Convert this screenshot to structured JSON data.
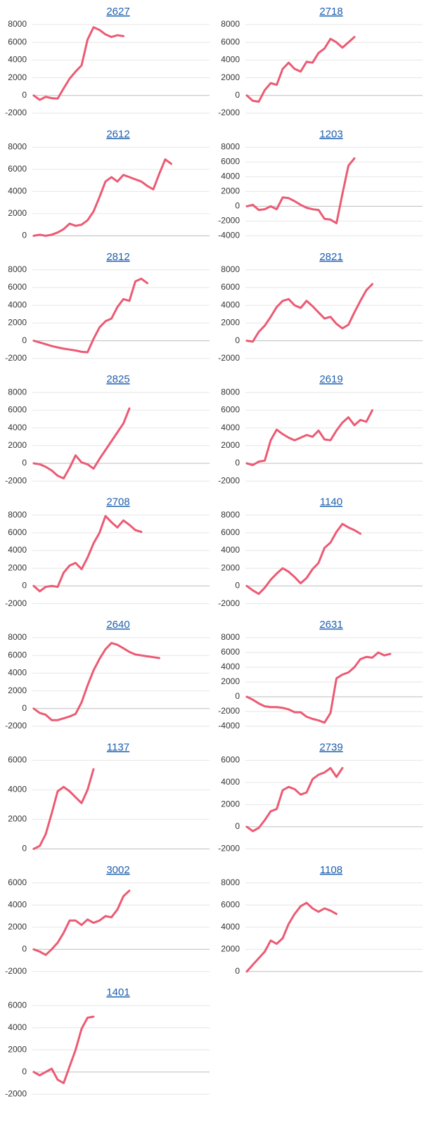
{
  "chart_data": [
    {
      "type": "line",
      "title": "2627",
      "color": "#ec5a73",
      "ylim": [
        -2000,
        8000
      ],
      "yticks": [
        -2000,
        0,
        2000,
        4000,
        6000,
        8000
      ],
      "grid": true,
      "values": [
        0,
        -500,
        -150,
        -300,
        -350,
        800,
        1900,
        2700,
        3400,
        6300,
        7700,
        7400,
        6900,
        6600,
        6800,
        6700
      ]
    },
    {
      "type": "line",
      "title": "2718",
      "color": "#ec5a73",
      "ylim": [
        -2000,
        8000
      ],
      "yticks": [
        -2000,
        0,
        2000,
        4000,
        6000,
        8000
      ],
      "grid": true,
      "values": [
        0,
        -600,
        -700,
        600,
        1400,
        1200,
        3000,
        3700,
        3000,
        2700,
        3800,
        3700,
        4800,
        5300,
        6400,
        6000,
        5400,
        6000,
        6600
      ]
    },
    {
      "type": "line",
      "title": "2612",
      "color": "#ec5a73",
      "ylim": [
        0,
        8000
      ],
      "yticks": [
        0,
        2000,
        4000,
        6000,
        8000
      ],
      "grid": true,
      "values": [
        0,
        100,
        0,
        100,
        300,
        600,
        1100,
        900,
        1000,
        1400,
        2200,
        3500,
        4900,
        5300,
        4900,
        5500,
        5300,
        5100,
        4900,
        4500,
        4200,
        5600,
        6900,
        6500
      ]
    },
    {
      "type": "line",
      "title": "1203",
      "color": "#ec5a73",
      "ylim": [
        -4000,
        8000
      ],
      "yticks": [
        -4000,
        -2000,
        0,
        2000,
        4000,
        6000,
        8000
      ],
      "grid": true,
      "values": [
        0,
        200,
        -500,
        -400,
        0,
        -400,
        1200,
        1100,
        700,
        200,
        -200,
        -400,
        -500,
        -1700,
        -1800,
        -2300,
        1700,
        5500,
        6500
      ]
    },
    {
      "type": "line",
      "title": "2812",
      "color": "#ec5a73",
      "ylim": [
        -2000,
        8000
      ],
      "yticks": [
        -2000,
        0,
        2000,
        4000,
        6000,
        8000
      ],
      "grid": true,
      "values": [
        0,
        -200,
        -400,
        -600,
        -750,
        -900,
        -1000,
        -1100,
        -1250,
        -1300,
        200,
        1500,
        2200,
        2500,
        3800,
        4700,
        4500,
        6700,
        7000,
        6500
      ]
    },
    {
      "type": "line",
      "title": "2821",
      "color": "#ec5a73",
      "ylim": [
        -2000,
        8000
      ],
      "yticks": [
        -2000,
        0,
        2000,
        4000,
        6000,
        8000
      ],
      "grid": true,
      "values": [
        0,
        -100,
        1000,
        1700,
        2700,
        3800,
        4500,
        4700,
        4000,
        3700,
        4500,
        3900,
        3200,
        2500,
        2700,
        1900,
        1400,
        1800,
        3200,
        4500,
        5700,
        6400
      ]
    },
    {
      "type": "line",
      "title": "2825",
      "color": "#ec5a73",
      "ylim": [
        -2000,
        8000
      ],
      "yticks": [
        -2000,
        0,
        2000,
        4000,
        6000,
        8000
      ],
      "grid": true,
      "values": [
        0,
        -100,
        -400,
        -800,
        -1400,
        -1700,
        -500,
        900,
        100,
        -100,
        -600,
        500,
        1500,
        2500,
        3500,
        4500,
        6200
      ]
    },
    {
      "type": "line",
      "title": "2619",
      "color": "#ec5a73",
      "ylim": [
        -2000,
        8000
      ],
      "yticks": [
        -2000,
        0,
        2000,
        4000,
        6000,
        8000
      ],
      "grid": true,
      "values": [
        0,
        -200,
        200,
        300,
        2600,
        3800,
        3300,
        2900,
        2600,
        2900,
        3200,
        3000,
        3700,
        2700,
        2600,
        3700,
        4600,
        5200,
        4300,
        4900,
        4700,
        6000
      ]
    },
    {
      "type": "line",
      "title": "2708",
      "color": "#ec5a73",
      "ylim": [
        -2000,
        8000
      ],
      "yticks": [
        -2000,
        0,
        2000,
        4000,
        6000,
        8000
      ],
      "grid": true,
      "values": [
        0,
        -600,
        -100,
        0,
        -100,
        1500,
        2300,
        2600,
        1900,
        3200,
        4800,
        6000,
        7900,
        7200,
        6600,
        7400,
        6900,
        6300,
        6100
      ]
    },
    {
      "type": "line",
      "title": "1140",
      "color": "#ec5a73",
      "ylim": [
        -2000,
        8000
      ],
      "yticks": [
        -2000,
        0,
        2000,
        4000,
        6000,
        8000
      ],
      "grid": true,
      "values": [
        0,
        -500,
        -900,
        -200,
        700,
        1400,
        2000,
        1600,
        1000,
        300,
        900,
        1900,
        2600,
        4300,
        4900,
        6100,
        7000,
        6600,
        6300,
        5900
      ]
    },
    {
      "type": "line",
      "title": "2640",
      "color": "#ec5a73",
      "ylim": [
        -2000,
        8000
      ],
      "yticks": [
        -2000,
        0,
        2000,
        4000,
        6000,
        8000
      ],
      "grid": true,
      "values": [
        0,
        -500,
        -700,
        -1300,
        -1300,
        -1100,
        -900,
        -600,
        700,
        2600,
        4300,
        5600,
        6700,
        7400,
        7200,
        6800,
        6400,
        6100,
        6000,
        5900,
        5800,
        5700
      ]
    },
    {
      "type": "line",
      "title": "2631",
      "color": "#ec5a73",
      "ylim": [
        -4000,
        8000
      ],
      "yticks": [
        -4000,
        -2000,
        0,
        2000,
        4000,
        6000,
        8000
      ],
      "grid": true,
      "values": [
        0,
        -400,
        -900,
        -1300,
        -1400,
        -1400,
        -1500,
        -1700,
        -2100,
        -2100,
        -2700,
        -3000,
        -3200,
        -3500,
        -2200,
        2500,
        3000,
        3300,
        4000,
        5100,
        5400,
        5300,
        6000,
        5600,
        5800
      ]
    },
    {
      "type": "line",
      "title": "1137",
      "color": "#ec5a73",
      "ylim": [
        0,
        6000
      ],
      "yticks": [
        0,
        2000,
        4000,
        6000
      ],
      "grid": true,
      "values": [
        0,
        200,
        1000,
        2400,
        3900,
        4200,
        3900,
        3500,
        3100,
        4000,
        5400
      ]
    },
    {
      "type": "line",
      "title": "2739",
      "color": "#ec5a73",
      "ylim": [
        -2000,
        6000
      ],
      "yticks": [
        -2000,
        0,
        2000,
        4000,
        6000
      ],
      "grid": true,
      "values": [
        0,
        -400,
        -100,
        600,
        1400,
        1600,
        3300,
        3600,
        3400,
        2900,
        3100,
        4300,
        4700,
        4900,
        5300,
        4500,
        5300
      ]
    },
    {
      "type": "line",
      "title": "3002",
      "color": "#ec5a73",
      "ylim": [
        -2000,
        6000
      ],
      "yticks": [
        -2000,
        0,
        2000,
        4000,
        6000
      ],
      "grid": true,
      "values": [
        0,
        -200,
        -500,
        0,
        600,
        1500,
        2600,
        2600,
        2200,
        2700,
        2400,
        2600,
        3000,
        2900,
        3600,
        4800,
        5300
      ]
    },
    {
      "type": "line",
      "title": "1108",
      "color": "#ec5a73",
      "ylim": [
        0,
        8000
      ],
      "yticks": [
        0,
        2000,
        4000,
        6000,
        8000
      ],
      "grid": true,
      "values": [
        0,
        600,
        1200,
        1800,
        2800,
        2500,
        3000,
        4300,
        5200,
        5900,
        6200,
        5700,
        5400,
        5700,
        5500,
        5200
      ]
    },
    {
      "type": "line",
      "title": "1401",
      "color": "#ec5a73",
      "ylim": [
        -2000,
        6000
      ],
      "yticks": [
        -2000,
        0,
        2000,
        4000,
        6000
      ],
      "grid": true,
      "values": [
        0,
        -300,
        0,
        300,
        -700,
        -1000,
        500,
        2000,
        3900,
        4900,
        5000
      ]
    }
  ]
}
